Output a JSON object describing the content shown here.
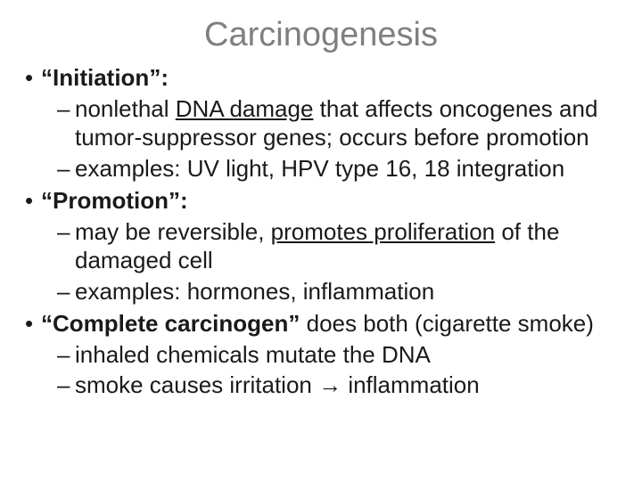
{
  "title": "Carcinogenesis",
  "items": [
    {
      "label_bold": "“Initiation”:",
      "label_rest": "",
      "sub": [
        {
          "pre": "nonlethal ",
          "ul": "DNA damage",
          "post": " that affects oncogenes and tumor-suppressor genes; occurs before promotion"
        },
        {
          "pre": "examples: UV light, HPV type 16, 18 integration",
          "ul": "",
          "post": ""
        }
      ]
    },
    {
      "label_bold": "“Promotion”:",
      "label_rest": "",
      "sub": [
        {
          "pre": "may be reversible, ",
          "ul": "promotes proliferation",
          "post": " of the damaged cell"
        },
        {
          "pre": "examples: hormones, inflammation",
          "ul": "",
          "post": ""
        }
      ]
    },
    {
      "label_bold": "“Complete carcinogen”",
      "label_rest": " does both (cigarette smoke)",
      "sub": [
        {
          "pre": "inhaled chemicals mutate the DNA",
          "ul": "",
          "post": ""
        },
        {
          "pre": "smoke causes irritation → inflammation",
          "ul": "",
          "post": ""
        }
      ]
    }
  ],
  "style": {
    "title_color": "#7f7f7f",
    "title_fontsize": 38,
    "body_fontsize": 26,
    "text_color": "#1a1a1a",
    "background": "#ffffff"
  }
}
